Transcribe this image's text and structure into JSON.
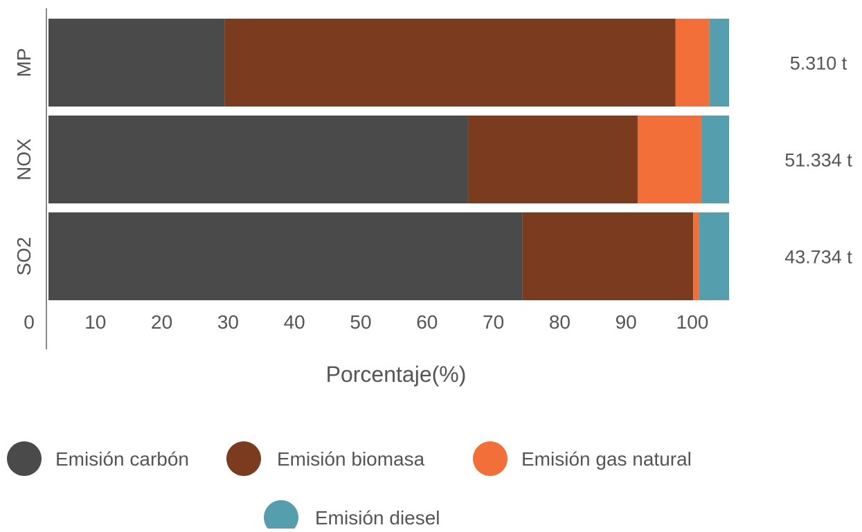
{
  "chart_data": {
    "type": "bar",
    "orientation": "horizontal",
    "stacked": true,
    "categories": [
      "MP",
      "NOX",
      "SO2"
    ],
    "totals": [
      "5.310 t",
      "51.334 t",
      "43.734 t"
    ],
    "series": [
      {
        "name": "Emisión carbón",
        "color": "#4a4a4a",
        "values": [
          26.0,
          62.0,
          70.0
        ]
      },
      {
        "name": "Emisión biomasa",
        "color": "#7a3b1e",
        "values": [
          66.6,
          25.0,
          25.2
        ]
      },
      {
        "name": "Emisión gas natural",
        "color": "#f36f3a",
        "values": [
          5.0,
          9.4,
          0.9
        ]
      },
      {
        "name": "Emisión diesel",
        "color": "#549ead",
        "values": [
          2.9,
          4.1,
          4.4
        ]
      }
    ],
    "xlabel": "Porcentaje(%)",
    "ylabel": "",
    "xlim": [
      0,
      100
    ],
    "xticks": [
      "0",
      "10",
      "20",
      "30",
      "40",
      "50",
      "60",
      "70",
      "80",
      "90",
      "100"
    ],
    "grid": false,
    "legend_position": "bottom"
  }
}
